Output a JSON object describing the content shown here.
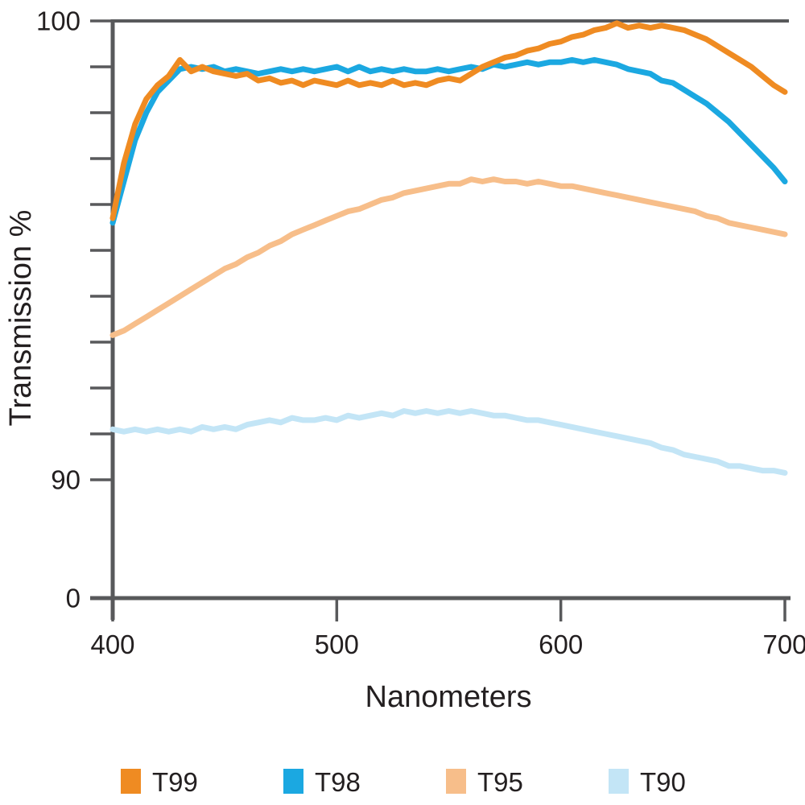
{
  "page": {
    "background": "#ffffff"
  },
  "chart_data": {
    "type": "line",
    "title": "",
    "xlabel": "Nanometers",
    "ylabel": "Transmission %",
    "axis_color": "#58595B",
    "text_color": "#231F20",
    "grid": false,
    "x_axis": {
      "min": 400,
      "max": 700,
      "tick_values": [
        400,
        500,
        600,
        700
      ],
      "tick_labels": [
        "400",
        "500",
        "600",
        "700"
      ]
    },
    "y_axis": {
      "unit": "%",
      "broken_axis": true,
      "note": "scale compressed between 0 and 90; 1% per minor tick from 90 to 100",
      "labeled_ticks": [
        {
          "label": "100",
          "value": 100
        },
        {
          "label": "90",
          "value": 90
        },
        {
          "label": "0",
          "value": 0
        }
      ],
      "minor_tick_values": [
        99,
        98,
        97,
        96,
        95,
        94,
        93,
        92,
        91
      ]
    },
    "legend": {
      "position": "bottom",
      "labels": [
        "T99",
        "T98",
        "T95",
        "T90"
      ]
    },
    "series": [
      {
        "name": "T90",
        "color": "#C3E5F6",
        "x_start": 400,
        "x_step": 5,
        "values": [
          91.1,
          91.05,
          91.1,
          91.05,
          91.1,
          91.05,
          91.1,
          91.05,
          91.15,
          91.1,
          91.15,
          91.1,
          91.2,
          91.25,
          91.3,
          91.25,
          91.35,
          91.3,
          91.3,
          91.35,
          91.3,
          91.4,
          91.35,
          91.4,
          91.45,
          91.4,
          91.5,
          91.45,
          91.5,
          91.45,
          91.5,
          91.45,
          91.5,
          91.45,
          91.4,
          91.4,
          91.35,
          91.3,
          91.3,
          91.25,
          91.2,
          91.15,
          91.1,
          91.05,
          91.0,
          90.95,
          90.9,
          90.85,
          90.8,
          90.7,
          90.65,
          90.55,
          90.5,
          90.45,
          90.4,
          90.3,
          90.3,
          90.25,
          90.2,
          90.2,
          90.15
        ]
      },
      {
        "name": "T95",
        "color": "#F7BE8A",
        "x_start": 400,
        "x_step": 5,
        "values": [
          93.15,
          93.25,
          93.4,
          93.55,
          93.7,
          93.85,
          94.0,
          94.15,
          94.3,
          94.45,
          94.6,
          94.7,
          94.85,
          94.95,
          95.1,
          95.2,
          95.35,
          95.45,
          95.55,
          95.65,
          95.75,
          95.85,
          95.9,
          96.0,
          96.1,
          96.15,
          96.25,
          96.3,
          96.35,
          96.4,
          96.45,
          96.45,
          96.55,
          96.5,
          96.55,
          96.5,
          96.5,
          96.45,
          96.5,
          96.45,
          96.4,
          96.4,
          96.35,
          96.3,
          96.25,
          96.2,
          96.15,
          96.1,
          96.05,
          96.0,
          95.95,
          95.9,
          95.85,
          95.75,
          95.7,
          95.6,
          95.55,
          95.5,
          95.45,
          95.4,
          95.35
        ]
      },
      {
        "name": "T98",
        "color": "#1BA8E1",
        "x_start": 400,
        "x_step": 5,
        "values": [
          95.6,
          96.5,
          97.4,
          98.0,
          98.45,
          98.7,
          98.95,
          99.0,
          98.95,
          99.0,
          98.9,
          98.95,
          98.9,
          98.85,
          98.9,
          98.95,
          98.9,
          98.95,
          98.9,
          98.95,
          99.0,
          98.9,
          99.0,
          98.9,
          98.95,
          98.9,
          98.95,
          98.9,
          98.9,
          98.95,
          98.9,
          98.95,
          99.0,
          98.95,
          99.05,
          99.0,
          99.05,
          99.1,
          99.05,
          99.1,
          99.1,
          99.15,
          99.1,
          99.15,
          99.1,
          99.05,
          98.95,
          98.9,
          98.85,
          98.7,
          98.65,
          98.5,
          98.35,
          98.2,
          98.0,
          97.8,
          97.55,
          97.3,
          97.05,
          96.8,
          96.5
        ]
      },
      {
        "name": "T99",
        "color": "#EF8B22",
        "x_start": 400,
        "x_step": 5,
        "values": [
          95.7,
          96.9,
          97.75,
          98.3,
          98.6,
          98.8,
          99.15,
          98.9,
          99.0,
          98.9,
          98.85,
          98.8,
          98.85,
          98.7,
          98.75,
          98.65,
          98.7,
          98.6,
          98.7,
          98.65,
          98.6,
          98.7,
          98.6,
          98.65,
          98.6,
          98.7,
          98.6,
          98.65,
          98.6,
          98.7,
          98.75,
          98.7,
          98.85,
          99.0,
          99.1,
          99.2,
          99.25,
          99.35,
          99.4,
          99.5,
          99.55,
          99.65,
          99.7,
          99.8,
          99.85,
          99.95,
          99.85,
          99.9,
          99.85,
          99.9,
          99.85,
          99.8,
          99.7,
          99.6,
          99.45,
          99.3,
          99.15,
          99.0,
          98.8,
          98.6,
          98.45
        ]
      }
    ]
  }
}
